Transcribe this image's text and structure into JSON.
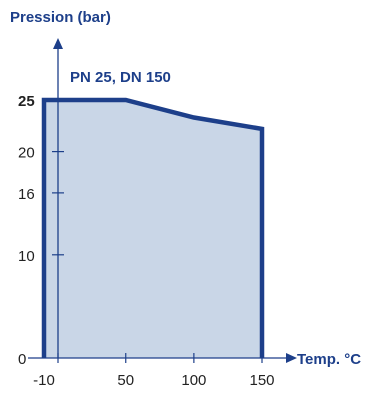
{
  "colors": {
    "accent": "#1d3f8a",
    "fill": "#c9d6e7",
    "text": "#222222"
  },
  "chart_data": {
    "type": "area",
    "title": "",
    "xlabel": "Temp. °C",
    "ylabel": "Pression (bar)",
    "annotation": "PN 25, DN 150",
    "x_ticks": [
      {
        "value": -10,
        "label": "-10"
      },
      {
        "value": 50,
        "label": "50"
      },
      {
        "value": 100,
        "label": "100"
      },
      {
        "value": 150,
        "label": "150"
      }
    ],
    "y_ticks": [
      {
        "value": 0,
        "label": "0"
      },
      {
        "value": 10,
        "label": "10"
      },
      {
        "value": 16,
        "label": "16"
      },
      {
        "value": 20,
        "label": "20"
      },
      {
        "value": 25,
        "label": "25"
      }
    ],
    "series": [
      {
        "x": [
          -10,
          -10,
          50,
          100,
          150,
          150
        ],
        "y": [
          0,
          25,
          25,
          23.3,
          22.2,
          0
        ]
      }
    ],
    "xlim": [
      -10,
      150
    ],
    "ylim": [
      0,
      25
    ],
    "grid": false,
    "legend": "none"
  }
}
